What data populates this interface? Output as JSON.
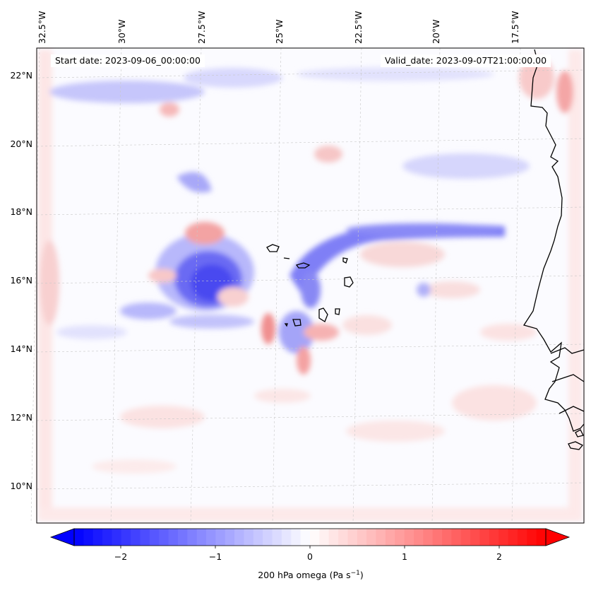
{
  "map": {
    "start_date": "Start date: 2023-09-06_00:00:00",
    "valid_date": "Valid_date: 2023-09-07T21:00:00.00",
    "lon_labels": [
      "32.5°W",
      "30°W",
      "27.5°W",
      "25°W",
      "22.5°W",
      "20°W",
      "17.5°W"
    ],
    "lat_labels": [
      "22°N",
      "20°N",
      "18°N",
      "16°N",
      "14°N",
      "12°N",
      "10°N"
    ]
  },
  "colorbar": {
    "tick_labels": [
      "−2",
      "−1",
      "0",
      "1",
      "2"
    ],
    "label_main": "200 hPa omega (Pa s",
    "label_sup": "−1",
    "label_end": ")",
    "min": -2.6,
    "max": 2.6,
    "colors": {
      "negative": "#0000ff",
      "zero": "#ffffff",
      "positive": "#ff0000"
    }
  }
}
